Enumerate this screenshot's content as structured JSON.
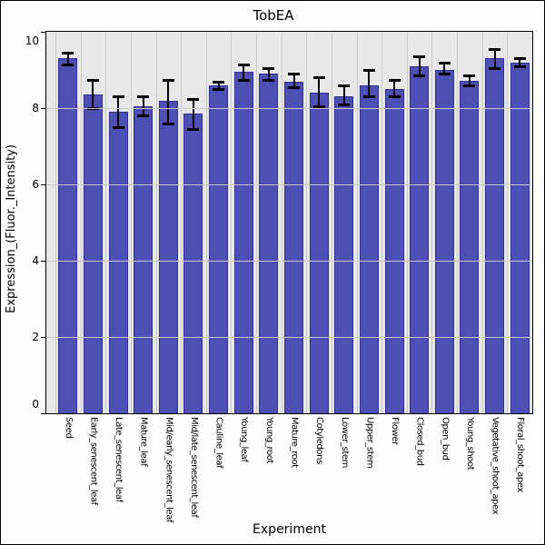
{
  "chart_data": {
    "type": "bar",
    "title": "TobEA",
    "xlabel": "Experiment",
    "ylabel": "Expression_(Fluor._Intensity)",
    "ylim": [
      0,
      10
    ],
    "yticks": [
      0,
      2,
      4,
      6,
      8,
      10
    ],
    "grid": true,
    "legend": "none",
    "categories": [
      "Seed",
      "Early_senescent_leaf",
      "Late_senescent_leaf",
      "Mature_leaf",
      "Mid/early_senescent_leaf",
      "Mid/late_senescent_leaf",
      "Cauline_leaf",
      "Young_leaf",
      "Young_root",
      "Mature_root",
      "Cotyledons",
      "Lower_stem",
      "Upper_stem",
      "Flower",
      "Closed_bud",
      "Open_bud",
      "Young_shoot",
      "Vegetative_shoot_apex",
      "Floral_shoot_apex"
    ],
    "values": [
      9.3,
      8.35,
      7.9,
      8.05,
      8.2,
      7.85,
      8.6,
      8.95,
      8.9,
      8.7,
      8.4,
      8.3,
      8.6,
      8.5,
      9.1,
      9.0,
      8.72,
      9.3,
      9.2
    ],
    "error_low": [
      9.15,
      8.0,
      7.5,
      7.8,
      7.6,
      7.45,
      8.5,
      8.75,
      8.75,
      8.55,
      8.05,
      8.1,
      8.3,
      8.3,
      8.85,
      8.9,
      8.6,
      9.05,
      9.1
    ],
    "error_high": [
      9.45,
      8.75,
      8.3,
      8.3,
      8.75,
      8.25,
      8.7,
      9.15,
      9.05,
      8.9,
      8.8,
      8.6,
      9.0,
      8.75,
      9.35,
      9.2,
      8.85,
      9.55,
      9.3
    ],
    "colors": {
      "bar_fill": "#4e4fb4",
      "bar_border": "#2e2f8f",
      "panel_background": "#e8e8e8",
      "gridline": "#c9c9c9",
      "error_bar": "#000000",
      "text": "#000000",
      "figure_background": "#fdfdfd",
      "frame": "#000000"
    }
  }
}
